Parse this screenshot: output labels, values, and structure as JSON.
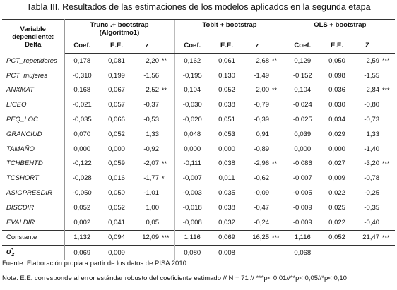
{
  "title": "Tabla III. Resultados de las estimaciones de los modelos aplicados en la segunda etapa",
  "table": {
    "header": {
      "variable": [
        "Variable",
        "dependiente:",
        "Delta"
      ],
      "groups": [
        {
          "title": [
            "Trunc .+ bootstrap",
            "(Algoritmo1)"
          ],
          "columns": [
            "Coef.",
            "E.E.",
            "z"
          ]
        },
        {
          "title": [
            "Tobit + bootstrap"
          ],
          "columns": [
            "Coef.",
            "E.E.",
            "z"
          ]
        },
        {
          "title": [
            "OLS + bootstrap"
          ],
          "columns": [
            "Coef.",
            "E.E.",
            "Z"
          ]
        }
      ]
    },
    "rows": [
      {
        "label": "PCT_repetidores",
        "groups": [
          [
            "0,178",
            "0,081",
            "2,20",
            "**"
          ],
          [
            "0,162",
            "0,061",
            "2,68",
            "**"
          ],
          [
            "0,129",
            "0,050",
            "2,59",
            "***"
          ]
        ]
      },
      {
        "label": "PCT_mujeres",
        "groups": [
          [
            "-0,310",
            "0,199",
            "-1,56"
          ],
          [
            "-0,195",
            "0,130",
            "-1,49"
          ],
          [
            "-0,152",
            "0,098",
            "-1,55"
          ]
        ]
      },
      {
        "label": "ANXMAT",
        "groups": [
          [
            "0,168",
            "0,067",
            "2,52",
            "**"
          ],
          [
            "0,104",
            "0,052",
            "2,00",
            "**"
          ],
          [
            "0,104",
            "0,036",
            "2,84",
            "***"
          ]
        ]
      },
      {
        "label": "LICEO",
        "groups": [
          [
            "-0,021",
            "0,057",
            "-0,37"
          ],
          [
            "-0,030",
            "0,038",
            "-0,79"
          ],
          [
            "-0,024",
            "0,030",
            "-0,80"
          ]
        ]
      },
      {
        "label": "PEQ_LOC",
        "groups": [
          [
            "-0,035",
            "0,066",
            "-0,53"
          ],
          [
            "-0,020",
            "0,051",
            "-0,39"
          ],
          [
            "-0,025",
            "0,034",
            "-0,73"
          ]
        ]
      },
      {
        "label": "GRANCIUD",
        "groups": [
          [
            "0,070",
            "0,052",
            "1,33"
          ],
          [
            "0,048",
            "0,053",
            "0,91"
          ],
          [
            "0,039",
            "0,029",
            "1,33"
          ]
        ]
      },
      {
        "label": "TAMAÑO",
        "groups": [
          [
            "0,000",
            "0,000",
            "-0,92"
          ],
          [
            "0,000",
            "0,000",
            "-0,89"
          ],
          [
            "0,000",
            "0,000",
            "-1,40"
          ]
        ]
      },
      {
        "label": "TCHBEHTD",
        "groups": [
          [
            "-0,122",
            "0,059",
            "-2,07",
            "**"
          ],
          [
            "-0,111",
            "0,038",
            "-2,96",
            "**"
          ],
          [
            "-0,086",
            "0,027",
            "-3,20",
            "***"
          ]
        ]
      },
      {
        "label": "TCSHORT",
        "groups": [
          [
            "-0,028",
            "0,016",
            "-1,77",
            "*"
          ],
          [
            "-0,007",
            "0,011",
            "-0,62"
          ],
          [
            "-0,007",
            "0,009",
            "-0,78"
          ]
        ]
      },
      {
        "label": "ASIGPRESDIR",
        "groups": [
          [
            "-0,050",
            "0,050",
            "-1,01"
          ],
          [
            "-0,003",
            "0,035",
            "-0,09"
          ],
          [
            "-0,005",
            "0,022",
            "-0,25"
          ]
        ]
      },
      {
        "label": "DISCDIR",
        "groups": [
          [
            "0,052",
            "0,052",
            "1,00"
          ],
          [
            "-0,018",
            "0,038",
            "-0,47"
          ],
          [
            "-0,009",
            "0,025",
            "-0,35"
          ]
        ]
      },
      {
        "label": "EVALDIR",
        "groups": [
          [
            "0,002",
            "0,041",
            "0,05"
          ],
          [
            "-0,008",
            "0,032",
            "-0,24"
          ],
          [
            "-0,009",
            "0,022",
            "-0,40"
          ]
        ]
      },
      {
        "label": "Constante",
        "groups": [
          [
            "1,132",
            "0,094",
            "12,09",
            "***"
          ],
          [
            "1,116",
            "0,069",
            "16,25",
            "***"
          ],
          [
            "1,116",
            "0,052",
            "21,47",
            "***"
          ]
        ]
      }
    ],
    "sigma": {
      "symbol": "σ̂",
      "subscript": "z",
      "groups": [
        [
          "0,069",
          "0,009"
        ],
        [
          "0,080",
          "0,008"
        ],
        [
          "0,068"
        ]
      ]
    }
  },
  "source": "Fuente: Elaboración propia a partir de los datos de PISA 2010.",
  "note": "Nota: E.E. corresponde al error estándar robusto del coeficiente estimado //  N = 71 // ***p< 0,01//**p< 0,05//*p< 0,10"
}
